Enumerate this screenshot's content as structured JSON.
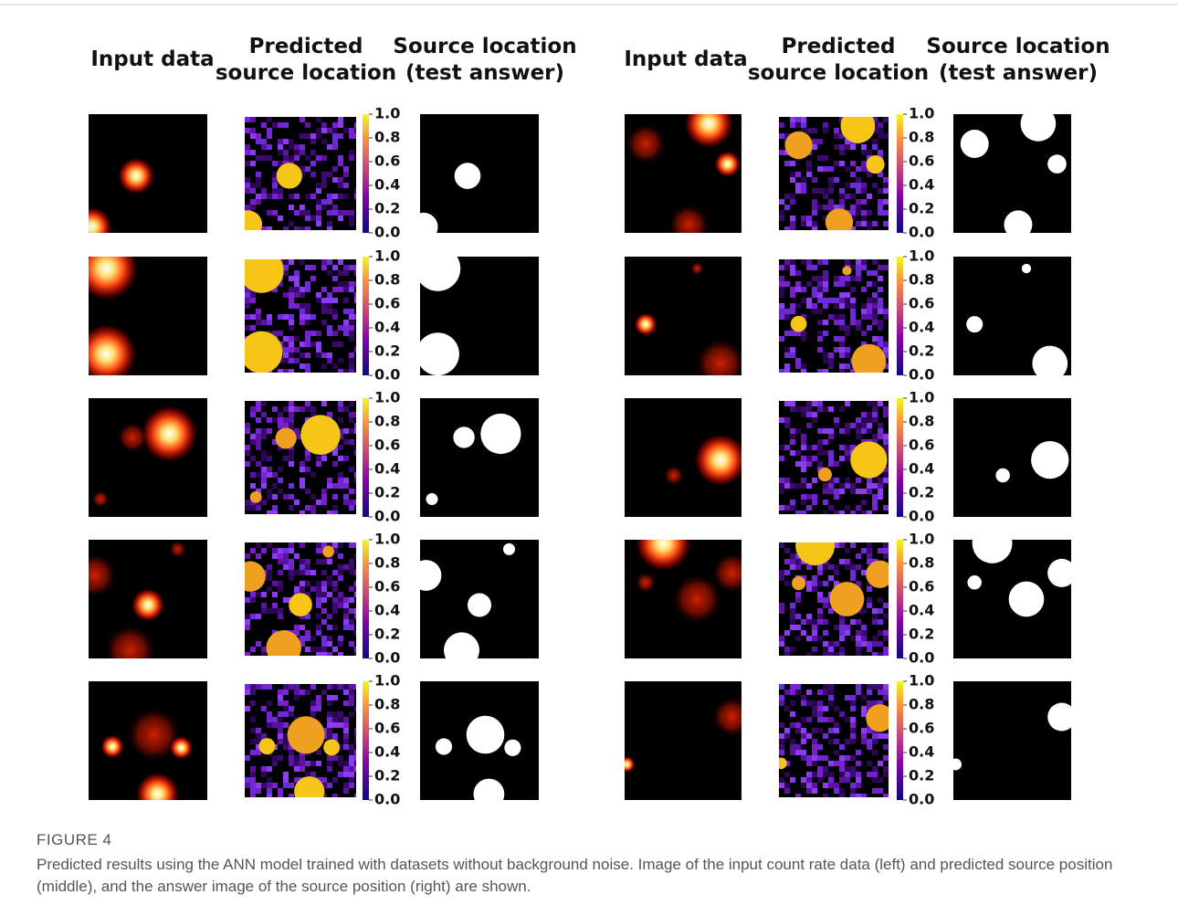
{
  "figure": {
    "panels": [
      {
        "headers": [
          [
            "Input data"
          ],
          [
            "Predicted",
            "source location"
          ],
          [
            "Source location",
            "(test answer)"
          ]
        ]
      },
      {
        "headers": [
          [
            "Input data"
          ],
          [
            "Predicted",
            "source location"
          ],
          [
            "Source location",
            "(test answer)"
          ]
        ]
      }
    ],
    "colorbar_ticks": [
      "1.0",
      "0.8",
      "0.6",
      "0.4",
      "0.2",
      "0.0"
    ],
    "caption": {
      "label": "FIGURE 4",
      "text": "Predicted results using the ANN model trained with datasets without background noise. Image of the input count rate data (left) and predicted source position (middle), and the answer image of the source position (right) are shown."
    }
  }
}
